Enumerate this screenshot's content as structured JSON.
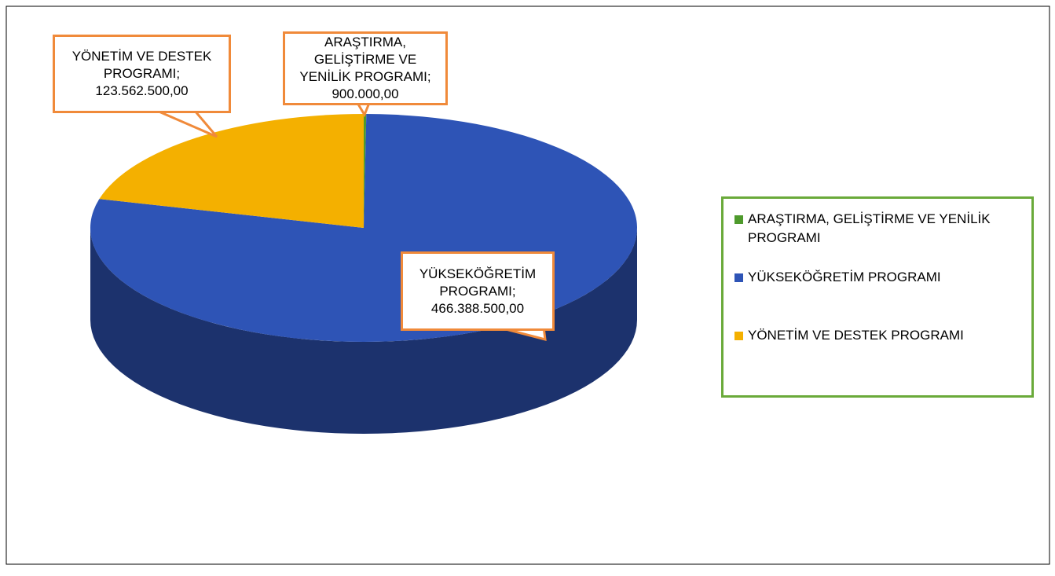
{
  "chart_data": {
    "type": "pie",
    "categories": [
      "ARAŞTIRMA, GELİŞTİRME VE YENİLİK PROGRAMI",
      "YÜKSEKÖĞRETİM PROGRAMI",
      "YÖNETİM VE DESTEK PROGRAMI"
    ],
    "values": [
      900000,
      466388500,
      123562500
    ],
    "value_labels": [
      "900.000,00",
      "466.388.500,00",
      "123.562.500,00"
    ],
    "label_separator": ";",
    "colors": [
      "#4e9a2c",
      "#2e54b6",
      "#f4b000"
    ],
    "legend": "right"
  }
}
